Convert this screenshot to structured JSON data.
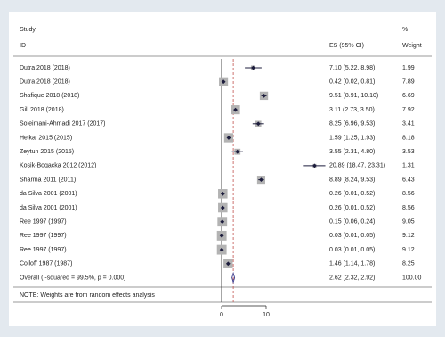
{
  "chart_data": {
    "type": "forest",
    "column_headers": {
      "study": "Study",
      "id": "ID",
      "es": "ES (95% CI)",
      "weight_top": "%",
      "weight": "Weight"
    },
    "categories": [
      "Dutra 2018 (2018)",
      "Dutra 2018 (2018)",
      "Shafique 2018 (2018)",
      "Gill 2018 (2018)",
      "Soleimani-Ahmadi 2017 (2017)",
      "Heikal 2015 (2015)",
      "Zeytun 2015 (2015)",
      "Kosik-Bogacka 2012 (2012)",
      "Sharma 2011 (2011)",
      "da Silva 2001 (2001)",
      "da Silva 2001 (2001)",
      "Ree 1997 (1997)",
      "Ree 1997 (1997)",
      "Ree 1997 (1997)",
      "Colloff 1987 (1987)"
    ],
    "values": [
      7.1,
      0.42,
      9.51,
      3.11,
      8.25,
      1.59,
      3.55,
      20.89,
      8.89,
      0.26,
      0.26,
      0.15,
      0.03,
      0.03,
      1.46
    ],
    "ci_low": [
      5.22,
      0.02,
      8.91,
      2.73,
      6.96,
      1.25,
      2.31,
      18.47,
      8.24,
      0.01,
      0.01,
      0.06,
      0.01,
      0.01,
      1.14
    ],
    "ci_high": [
      8.98,
      0.81,
      10.1,
      3.5,
      9.53,
      1.93,
      4.8,
      23.31,
      9.53,
      0.52,
      0.52,
      0.24,
      0.05,
      0.05,
      1.78
    ],
    "value_labels": [
      "7.10 (5.22, 8.98)",
      "0.42 (0.02, 0.81)",
      "9.51 (8.91, 10.10)",
      "3.11 (2.73, 3.50)",
      "8.25 (6.96, 9.53)",
      "1.59 (1.25, 1.93)",
      "3.55 (2.31, 4.80)",
      "20.89 (18.47, 23.31)",
      "8.89 (8.24, 9.53)",
      "0.26 (0.01, 0.52)",
      "0.26 (0.01, 0.52)",
      "0.15 (0.06, 0.24)",
      "0.03 (0.01, 0.05)",
      "0.03 (0.01, 0.05)",
      "1.46 (1.14, 1.78)"
    ],
    "weights": [
      1.99,
      7.89,
      6.69,
      7.92,
      3.41,
      8.18,
      3.53,
      1.31,
      6.43,
      8.56,
      8.56,
      9.05,
      9.12,
      9.12,
      8.25
    ],
    "weight_labels": [
      "1.99",
      "7.89",
      "6.69",
      "7.92",
      "3.41",
      "8.18",
      "3.53",
      "1.31",
      "6.43",
      "8.56",
      "8.56",
      "9.05",
      "9.12",
      "9.12",
      "8.25"
    ],
    "overall": {
      "label": "Overall  (I-squared = 99.5%, p = 0.000)",
      "value": 2.62,
      "ci_low": 2.32,
      "ci_high": 2.92,
      "value_label": "2.62 (2.32, 2.92)",
      "weight": 100,
      "weight_label": "100.00"
    },
    "note": "NOTE: Weights are from random effects analysis",
    "xlim": [
      0,
      10
    ],
    "xticks": [
      0,
      10
    ],
    "box_color": "#b3b3b3",
    "point_color": "#1c1c3c",
    "overall_line_color": "#c0504d",
    "diamond_color": "#3a3a8c"
  }
}
